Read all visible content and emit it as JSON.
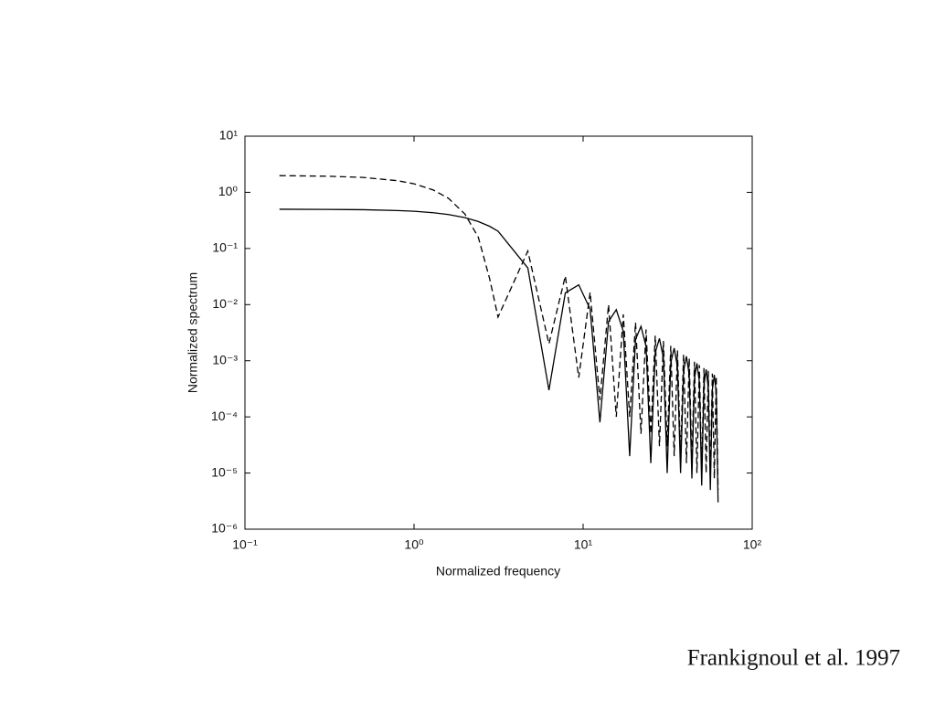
{
  "chart_data": {
    "type": "line",
    "xlabel": "Normalized frequency",
    "ylabel": "Normalized spectrum",
    "log_x": true,
    "log_y": true,
    "grid": false,
    "xlim": [
      0.1,
      100
    ],
    "xticks": [
      {
        "value": 0.1,
        "label": "10⁻¹"
      },
      {
        "value": 1,
        "label": "10⁰"
      },
      {
        "value": 10,
        "label": "10¹"
      },
      {
        "value": 100,
        "label": "10²"
      }
    ],
    "ylim": [
      1e-06,
      10
    ],
    "yticks": [
      {
        "value": 1e-06,
        "label": "10⁻⁶"
      },
      {
        "value": 1e-05,
        "label": "10⁻⁵"
      },
      {
        "value": 0.0001,
        "label": "10⁻⁴"
      },
      {
        "value": 0.001,
        "label": "10⁻³"
      },
      {
        "value": 0.01,
        "label": "10⁻²"
      },
      {
        "value": 0.1,
        "label": "10⁻¹"
      },
      {
        "value": 1,
        "label": "10⁰"
      },
      {
        "value": 10,
        "label": "10¹"
      }
    ],
    "x": [
      0.16,
      0.3,
      0.5,
      0.8,
      1.0,
      1.3,
      1.6,
      2.0,
      2.4,
      2.8,
      3.14,
      4.71,
      6.28,
      7.85,
      9.42,
      11.0,
      12.57,
      14.14,
      15.71,
      17.28,
      18.85,
      20.42,
      21.99,
      23.56,
      25.13,
      26.7,
      28.27,
      29.85,
      31.42,
      32.99,
      34.56,
      36.13,
      37.7,
      39.27,
      40.84,
      42.41,
      43.98,
      45.55,
      47.12,
      48.69,
      50.27,
      51.84,
      53.41,
      54.98,
      56.55,
      58.12,
      59.69,
      61.26,
      62.83
    ],
    "series": [
      {
        "color": "#000000",
        "dash": false,
        "values": [
          0.5,
          0.496,
          0.49,
          0.474,
          0.46,
          0.433,
          0.402,
          0.354,
          0.302,
          0.248,
          0.203,
          0.045,
          0.0003,
          0.0162,
          0.0225,
          0.0083,
          8e-05,
          0.005,
          0.0081,
          0.00335,
          2e-05,
          0.0024,
          0.0041,
          0.0018,
          1.5e-05,
          0.0014,
          0.0025,
          0.00112,
          1e-05,
          0.00092,
          0.00168,
          0.00077,
          1e-05,
          0.00065,
          0.0012,
          0.00056,
          8e-06,
          0.00048,
          0.0009,
          0.00042,
          6e-06,
          0.00037,
          0.0007,
          0.00033,
          5e-06,
          0.0003,
          0.00056,
          0.00027,
          3e-06
        ]
      },
      {
        "color": "#000000",
        "dash": true,
        "values": [
          1.98,
          1.94,
          1.84,
          1.61,
          1.42,
          1.1,
          0.78,
          0.41,
          0.158,
          0.029,
          0.006,
          0.09,
          0.002,
          0.0324,
          0.0005,
          0.01654,
          0.0002,
          0.01,
          0.0001,
          0.0067,
          0.0001,
          0.0048,
          5e-05,
          0.0036,
          5e-05,
          0.0028,
          3e-05,
          0.00224,
          3e-05,
          0.00184,
          2e-05,
          0.00153,
          2e-05,
          0.0013,
          1.5e-05,
          0.00111,
          1.5e-05,
          0.00096,
          1e-05,
          0.00084,
          1e-05,
          0.00074,
          1e-05,
          0.00066,
          8e-06,
          0.00059,
          8e-06,
          0.00053,
          5e-06
        ]
      }
    ]
  },
  "caption": "Frankignoul et al. 1997"
}
